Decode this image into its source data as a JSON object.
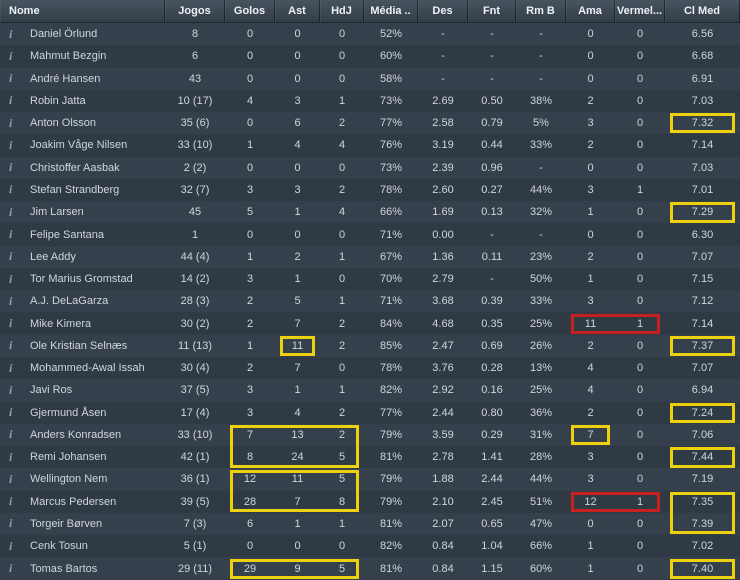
{
  "table": {
    "columns": [
      {
        "key": "nome",
        "label": "Nome"
      },
      {
        "key": "jogos",
        "label": "Jogos"
      },
      {
        "key": "golos",
        "label": "Golos"
      },
      {
        "key": "ast",
        "label": "Ast"
      },
      {
        "key": "hdj",
        "label": "HdJ"
      },
      {
        "key": "media",
        "label": "Média .."
      },
      {
        "key": "des",
        "label": "Des"
      },
      {
        "key": "fnt",
        "label": "Fnt"
      },
      {
        "key": "rmb",
        "label": "Rm B"
      },
      {
        "key": "ama",
        "label": "Ama"
      },
      {
        "key": "vermel",
        "label": "Vermel..."
      },
      {
        "key": "clmed",
        "label": "Cl Med"
      }
    ],
    "info_icon_glyph": "i",
    "rows": [
      [
        "Daniel Örlund",
        "8",
        "0",
        "0",
        "0",
        "52%",
        "-",
        "-",
        "-",
        "0",
        "0",
        "6.56"
      ],
      [
        "Mahmut Bezgin",
        "6",
        "0",
        "0",
        "0",
        "60%",
        "-",
        "-",
        "-",
        "0",
        "0",
        "6.68"
      ],
      [
        "André Hansen",
        "43",
        "0",
        "0",
        "0",
        "58%",
        "-",
        "-",
        "-",
        "0",
        "0",
        "6.91"
      ],
      [
        "Robin Jatta",
        "10 (17)",
        "4",
        "3",
        "1",
        "73%",
        "2.69",
        "0.50",
        "38%",
        "2",
        "0",
        "7.03"
      ],
      [
        "Anton Olsson",
        "35 (6)",
        "0",
        "6",
        "2",
        "77%",
        "2.58",
        "0.79",
        "5%",
        "3",
        "0",
        "7.32"
      ],
      [
        "Joakim Våge Nilsen",
        "33 (10)",
        "1",
        "4",
        "4",
        "76%",
        "3.19",
        "0.44",
        "33%",
        "2",
        "0",
        "7.14"
      ],
      [
        "Christoffer Aasbak",
        "2 (2)",
        "0",
        "0",
        "0",
        "73%",
        "2.39",
        "0.96",
        "-",
        "0",
        "0",
        "7.03"
      ],
      [
        "Stefan Strandberg",
        "32 (7)",
        "3",
        "3",
        "2",
        "78%",
        "2.60",
        "0.27",
        "44%",
        "3",
        "1",
        "7.01"
      ],
      [
        "Jim Larsen",
        "45",
        "5",
        "1",
        "4",
        "66%",
        "1.69",
        "0.13",
        "32%",
        "1",
        "0",
        "7.29"
      ],
      [
        "Felipe Santana",
        "1",
        "0",
        "0",
        "0",
        "71%",
        "0.00",
        "-",
        "-",
        "0",
        "0",
        "6.30"
      ],
      [
        "Lee Addy",
        "44 (4)",
        "1",
        "2",
        "1",
        "67%",
        "1.36",
        "0.11",
        "23%",
        "2",
        "0",
        "7.07"
      ],
      [
        "Tor Marius Gromstad",
        "14 (2)",
        "3",
        "1",
        "0",
        "70%",
        "2.79",
        "-",
        "50%",
        "1",
        "0",
        "7.15"
      ],
      [
        "A.J. DeLaGarza",
        "28 (3)",
        "2",
        "5",
        "1",
        "71%",
        "3.68",
        "0.39",
        "33%",
        "3",
        "0",
        "7.12"
      ],
      [
        "Mike Kimera",
        "30 (2)",
        "2",
        "7",
        "2",
        "84%",
        "4.68",
        "0.35",
        "25%",
        "11",
        "1",
        "7.14"
      ],
      [
        "Ole Kristian Selnæs",
        "11 (13)",
        "1",
        "11",
        "2",
        "85%",
        "2.47",
        "0.69",
        "26%",
        "2",
        "0",
        "7.37"
      ],
      [
        "Mohammed-Awal Issah",
        "30 (4)",
        "2",
        "7",
        "0",
        "78%",
        "3.76",
        "0.28",
        "13%",
        "4",
        "0",
        "7.07"
      ],
      [
        "Javi Ros",
        "37 (5)",
        "3",
        "1",
        "1",
        "82%",
        "2.92",
        "0.16",
        "25%",
        "4",
        "0",
        "6.94"
      ],
      [
        "Gjermund Åsen",
        "17 (4)",
        "3",
        "4",
        "2",
        "77%",
        "2.44",
        "0.80",
        "36%",
        "2",
        "0",
        "7.24"
      ],
      [
        "Anders Konradsen",
        "33 (10)",
        "7",
        "13",
        "2",
        "79%",
        "3.59",
        "0.29",
        "31%",
        "7",
        "0",
        "7.06"
      ],
      [
        "Remi Johansen",
        "42 (1)",
        "8",
        "24",
        "5",
        "81%",
        "2.78",
        "1.41",
        "28%",
        "3",
        "0",
        "7.44"
      ],
      [
        "Wellington Nem",
        "36 (1)",
        "12",
        "11",
        "5",
        "79%",
        "1.88",
        "2.44",
        "44%",
        "3",
        "0",
        "7.19"
      ],
      [
        "Marcus Pedersen",
        "39 (5)",
        "28",
        "7",
        "8",
        "79%",
        "2.10",
        "2.45",
        "51%",
        "12",
        "1",
        "7.35"
      ],
      [
        "Torgeir Børven",
        "7 (3)",
        "6",
        "1",
        "1",
        "81%",
        "2.07",
        "0.65",
        "47%",
        "0",
        "0",
        "7.39"
      ],
      [
        "Cenk Tosun",
        "5 (1)",
        "0",
        "0",
        "0",
        "82%",
        "0.84",
        "1.04",
        "66%",
        "1",
        "0",
        "7.02"
      ],
      [
        "Tomas Bartos",
        "29 (11)",
        "29",
        "9",
        "5",
        "81%",
        "0.84",
        "1.15",
        "60%",
        "1",
        "0",
        "7.40"
      ]
    ],
    "highlight_colors": {
      "good": "#eed10e",
      "bad": "#c62020"
    },
    "highlights": [
      {
        "rows": [
          4,
          4
        ],
        "cols": [
          11,
          11
        ],
        "type": "good"
      },
      {
        "rows": [
          8,
          8
        ],
        "cols": [
          11,
          11
        ],
        "type": "good"
      },
      {
        "rows": [
          13,
          13
        ],
        "cols": [
          9,
          10
        ],
        "type": "bad"
      },
      {
        "rows": [
          14,
          14
        ],
        "cols": [
          3,
          3
        ],
        "type": "good"
      },
      {
        "rows": [
          14,
          14
        ],
        "cols": [
          11,
          11
        ],
        "type": "good"
      },
      {
        "rows": [
          17,
          17
        ],
        "cols": [
          11,
          11
        ],
        "type": "good"
      },
      {
        "rows": [
          18,
          19
        ],
        "cols": [
          2,
          4
        ],
        "type": "good"
      },
      {
        "rows": [
          18,
          18
        ],
        "cols": [
          9,
          9
        ],
        "type": "good"
      },
      {
        "rows": [
          19,
          19
        ],
        "cols": [
          11,
          11
        ],
        "type": "good"
      },
      {
        "rows": [
          20,
          21
        ],
        "cols": [
          2,
          4
        ],
        "type": "good"
      },
      {
        "rows": [
          21,
          21
        ],
        "cols": [
          9,
          10
        ],
        "type": "bad"
      },
      {
        "rows": [
          21,
          22
        ],
        "cols": [
          11,
          11
        ],
        "type": "good"
      },
      {
        "rows": [
          24,
          24
        ],
        "cols": [
          2,
          4
        ],
        "type": "good"
      },
      {
        "rows": [
          24,
          24
        ],
        "cols": [
          11,
          11
        ],
        "type": "good"
      }
    ]
  }
}
